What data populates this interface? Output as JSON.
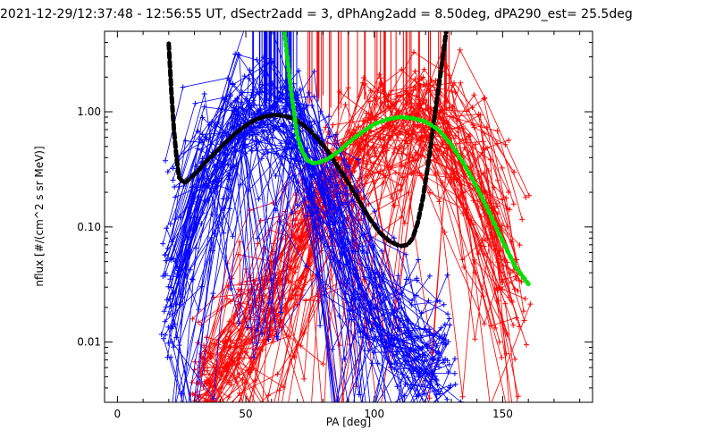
{
  "chart_data": {
    "type": "line",
    "title": "2021-12-29/12:37:48 - 12:56:55 UT, dSectr2add = 3, dPhAng2add = 8.50deg, dPA290_est=  25.5deg",
    "xlabel": "PA [deg]",
    "ylabel": "nflux [#/(cm^2 s sr MeV)]",
    "xlim": [
      -5,
      185
    ],
    "ylim": [
      0.003,
      5.0
    ],
    "y_scale": "log",
    "x_ticks": [
      0,
      50,
      100,
      150
    ],
    "x_tick_labels": [
      "0",
      "50",
      "100",
      "150"
    ],
    "y_ticks": [
      0.01,
      0.1,
      1.0
    ],
    "y_tick_labels": [
      "0.01",
      "0.10",
      "1.00"
    ],
    "grid": false,
    "legend": "none",
    "series": [
      {
        "color": "#ff0000",
        "marker": "+",
        "description_note": "",
        "fit_x": [
          30,
          40,
          50,
          60,
          70,
          80,
          90,
          100,
          110,
          115,
          120,
          125,
          130,
          135,
          140,
          145,
          150,
          155,
          160
        ],
        "fit_y": [
          0.004,
          0.006,
          0.012,
          0.025,
          0.06,
          0.15,
          0.35,
          0.6,
          0.85,
          0.92,
          0.92,
          0.85,
          0.7,
          0.5,
          0.3,
          0.15,
          0.07,
          0.03,
          0.012
        ]
      },
      {
        "color": "#0000ff",
        "marker": "+",
        "description_note": "",
        "fit_x": [
          18,
          25,
          30,
          35,
          40,
          45,
          50,
          55,
          60,
          65,
          70,
          75,
          80,
          85,
          90,
          95,
          100,
          105,
          110,
          115,
          120,
          125,
          130
        ],
        "fit_y": [
          0.015,
          0.06,
          0.15,
          0.3,
          0.5,
          0.7,
          0.85,
          0.93,
          0.95,
          0.9,
          0.75,
          0.5,
          0.3,
          0.15,
          0.07,
          0.035,
          0.02,
          0.014,
          0.011,
          0.01,
          0.009,
          0.008,
          0.007
        ]
      }
    ],
    "fits": [
      {
        "color": "#000000",
        "style": "thick-dashed",
        "x": [
          20,
          21,
          22,
          23,
          24,
          26,
          28,
          31,
          34,
          38,
          42,
          46,
          50,
          54,
          58,
          62,
          66,
          70,
          74,
          78,
          82,
          86,
          90,
          94,
          98,
          102,
          106,
          110,
          113,
          115,
          117,
          119,
          121,
          123,
          125,
          127,
          128
        ],
        "y": [
          3.9,
          1.5,
          0.7,
          0.4,
          0.27,
          0.24,
          0.26,
          0.3,
          0.36,
          0.44,
          0.54,
          0.65,
          0.76,
          0.86,
          0.92,
          0.94,
          0.91,
          0.84,
          0.72,
          0.58,
          0.45,
          0.33,
          0.24,
          0.17,
          0.12,
          0.09,
          0.075,
          0.068,
          0.07,
          0.08,
          0.11,
          0.18,
          0.35,
          0.75,
          1.6,
          3.3,
          5.0
        ]
      },
      {
        "color": "#00e000",
        "style": "thick-dotted",
        "x": [
          65,
          66,
          67,
          68,
          69,
          70,
          72,
          74,
          76,
          78,
          82,
          86,
          90,
          95,
          100,
          105,
          110,
          115,
          120,
          125,
          130,
          135,
          140,
          145,
          150,
          155,
          160
        ],
        "y": [
          5.0,
          3.2,
          2.0,
          1.3,
          0.9,
          0.62,
          0.45,
          0.38,
          0.36,
          0.36,
          0.39,
          0.45,
          0.54,
          0.66,
          0.78,
          0.86,
          0.9,
          0.88,
          0.82,
          0.7,
          0.52,
          0.35,
          0.22,
          0.13,
          0.075,
          0.045,
          0.032
        ]
      }
    ]
  }
}
